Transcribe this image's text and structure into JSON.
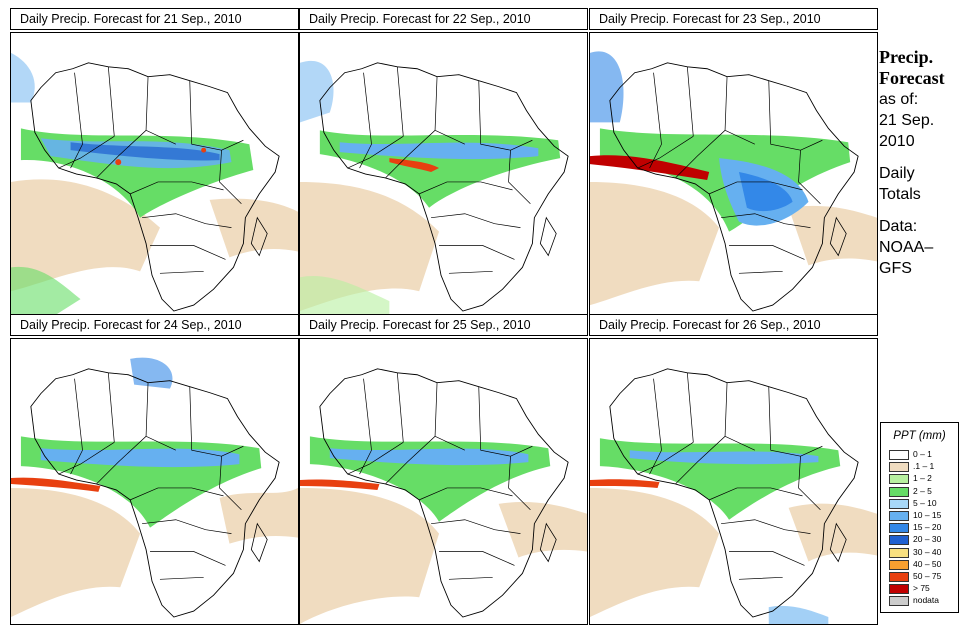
{
  "panels": [
    {
      "title": "Daily Precip. Forecast for  21 Sep., 2010"
    },
    {
      "title": "Daily Precip. Forecast for  22 Sep., 2010"
    },
    {
      "title": "Daily Precip. Forecast for  23 Sep., 2010"
    },
    {
      "title": "Daily Precip. Forecast for  24 Sep., 2010"
    },
    {
      "title": "Daily Precip. Forecast for  25 Sep., 2010"
    },
    {
      "title": "Daily Precip. Forecast for  26 Sep., 2010"
    }
  ],
  "sidebar": {
    "heading_line1": "Precip.",
    "heading_line2": "Forecast",
    "asof_line1": "as of:",
    "asof_line2": "21 Sep.",
    "asof_line3": "2010",
    "totals_line1": "Daily",
    "totals_line2": "Totals",
    "data_line1": "Data:",
    "data_line2": "NOAA–",
    "data_line3": "GFS"
  },
  "legend": {
    "title": "PPT (mm)",
    "items": [
      {
        "label": "0 – 1",
        "color": "#ffffff"
      },
      {
        "label": ".1 – 1",
        "color": "#f0dcc0"
      },
      {
        "label": "1 – 2",
        "color": "#b8f0a0"
      },
      {
        "label": "2 – 5",
        "color": "#66dd66"
      },
      {
        "label": "5 – 10",
        "color": "#a8d8f8"
      },
      {
        "label": "10 – 15",
        "color": "#66b0f0"
      },
      {
        "label": "15 – 20",
        "color": "#3388e8"
      },
      {
        "label": "20 – 30",
        "color": "#2060d0"
      },
      {
        "label": "30 – 40",
        "color": "#f8e080"
      },
      {
        "label": "40 – 50",
        "color": "#f8a030"
      },
      {
        "label": "50 – 75",
        "color": "#e84010"
      },
      {
        "label": "> 75",
        "color": "#c00000"
      },
      {
        "label": "nodata",
        "color": "#cccccc"
      }
    ]
  }
}
